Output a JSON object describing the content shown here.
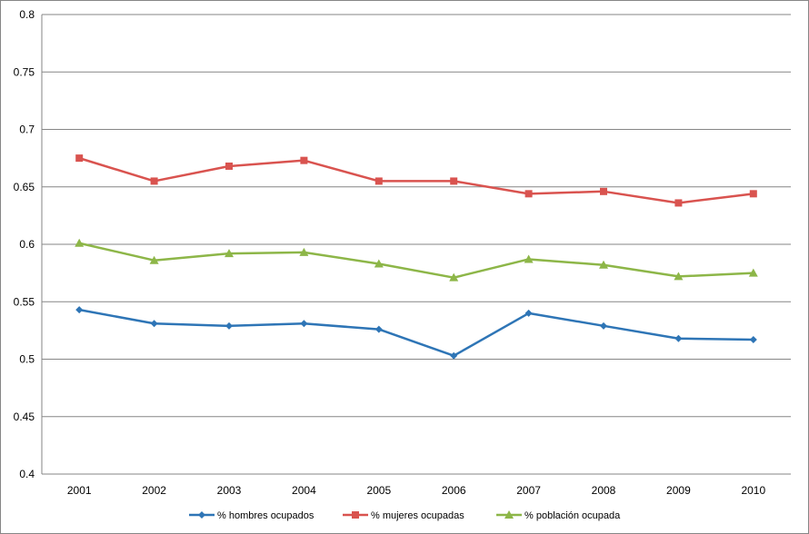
{
  "chart_data": {
    "type": "line",
    "title": "",
    "xlabel": "",
    "ylabel": "",
    "categories": [
      "2001",
      "2002",
      "2003",
      "2004",
      "2005",
      "2006",
      "2007",
      "2008",
      "2009",
      "2010"
    ],
    "ylim": [
      0.4,
      0.8
    ],
    "yticks": [
      "0.4",
      "0.45",
      "0.5",
      "0.55",
      "0.6",
      "0.65",
      "0.7",
      "0.75",
      "0.8"
    ],
    "grid": true,
    "legend_position": "bottom",
    "series": [
      {
        "name": "% hombres ocupados",
        "color": "#2E75B6",
        "marker": "diamond",
        "values": [
          0.543,
          0.531,
          0.529,
          0.531,
          0.526,
          0.503,
          0.54,
          0.529,
          0.518,
          0.517
        ]
      },
      {
        "name": "% mujeres ocupadas",
        "color": "#D9534F",
        "marker": "square",
        "values": [
          0.675,
          0.655,
          0.668,
          0.673,
          0.655,
          0.655,
          0.644,
          0.646,
          0.636,
          0.644
        ]
      },
      {
        "name": "% población ocupada",
        "color": "#8DB648",
        "marker": "triangle",
        "values": [
          0.601,
          0.586,
          0.592,
          0.593,
          0.583,
          0.571,
          0.587,
          0.582,
          0.572,
          0.575
        ]
      }
    ]
  }
}
